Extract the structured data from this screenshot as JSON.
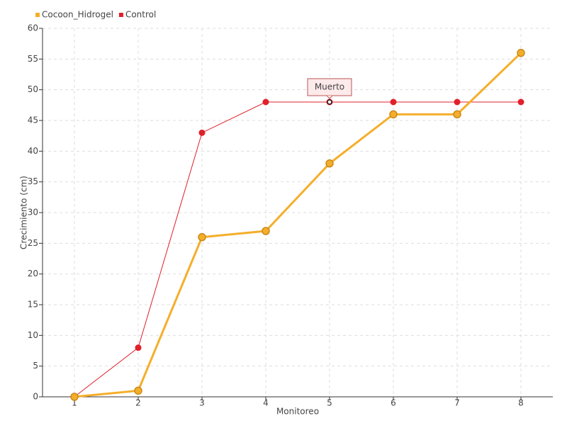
{
  "chart_data": {
    "type": "line",
    "categories": [
      "1",
      "2",
      "3",
      "4",
      "5",
      "6",
      "7",
      "8"
    ],
    "series": [
      {
        "name": "Cocoon_Hidrogel",
        "color": "#f5ae2a",
        "values": [
          0,
          1,
          26,
          27,
          38,
          46,
          46,
          56
        ]
      },
      {
        "name": "Control",
        "color": "#e0202a",
        "values": [
          0,
          8,
          43,
          48,
          48,
          48,
          48,
          48
        ]
      }
    ],
    "xlabel": "Monitoreo",
    "ylabel": "Crecimiento (cm)",
    "ylim": [
      0,
      60
    ],
    "yticks": [
      0,
      5,
      10,
      15,
      20,
      25,
      30,
      35,
      40,
      45,
      50,
      55,
      60
    ],
    "grid": true,
    "annotation": "Muerto"
  }
}
